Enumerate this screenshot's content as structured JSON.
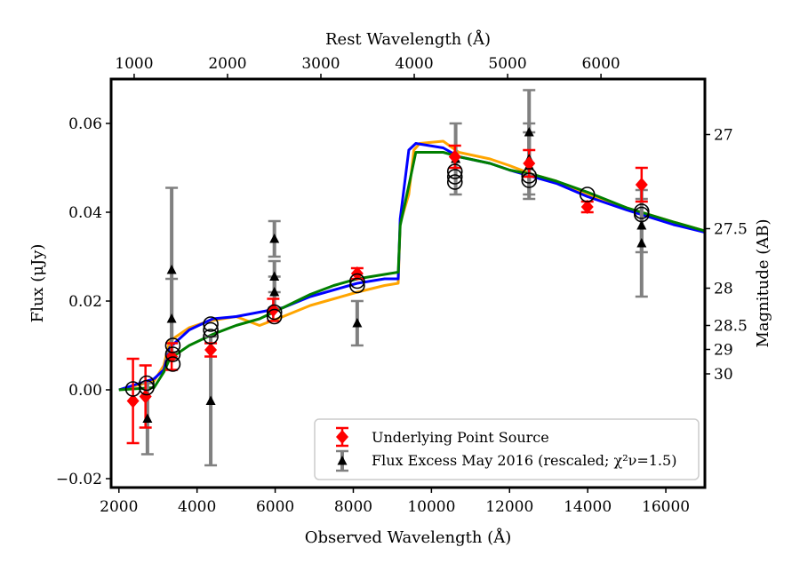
{
  "chart_data": {
    "type": "scatter",
    "xlabel": "Observed Wavelength (Å)",
    "ylabel": "Flux (μJy)",
    "top_xlabel": "Rest Wavelength (Å)",
    "right_ylabel": "Magnitude (AB)",
    "xlim": [
      1800,
      17000
    ],
    "ylim": [
      -0.022,
      0.07
    ],
    "x_ticks": [
      {
        "value": 2000,
        "label": "2000"
      },
      {
        "value": 4000,
        "label": "4000"
      },
      {
        "value": 6000,
        "label": "6000"
      },
      {
        "value": 8000,
        "label": "8000"
      },
      {
        "value": 10000,
        "label": "10000"
      },
      {
        "value": 12000,
        "label": "12000"
      },
      {
        "value": 14000,
        "label": "14000"
      },
      {
        "value": 16000,
        "label": "16000"
      }
    ],
    "y_ticks": [
      {
        "value": -0.02,
        "label": "−0.02"
      },
      {
        "value": 0.0,
        "label": "0.00"
      },
      {
        "value": 0.02,
        "label": "0.02"
      },
      {
        "value": 0.04,
        "label": "0.04"
      },
      {
        "value": 0.06,
        "label": "0.06"
      }
    ],
    "top_ticks": [
      {
        "value": 2390,
        "label": "1000"
      },
      {
        "value": 4780,
        "label": "2000"
      },
      {
        "value": 7170,
        "label": "3000"
      },
      {
        "value": 9560,
        "label": "4000"
      },
      {
        "value": 11950,
        "label": "5000"
      },
      {
        "value": 14340,
        "label": "6000"
      }
    ],
    "right_ticks": [
      {
        "flux": 0.0575,
        "label": "27"
      },
      {
        "flux": 0.0363,
        "label": "27.5"
      },
      {
        "flux": 0.0229,
        "label": "28"
      },
      {
        "flux": 0.0145,
        "label": "28.5"
      },
      {
        "flux": 0.0091,
        "label": "29"
      },
      {
        "flux": 0.0036,
        "label": "30"
      }
    ],
    "series": [
      {
        "name": "Underlying Point Source",
        "marker": "diamond",
        "color": "#ff0000",
        "points": [
          {
            "x": 2360,
            "y": -0.0025,
            "err": 0.0095
          },
          {
            "x": 2680,
            "y": -0.0015,
            "err": 0.007
          },
          {
            "x": 3350,
            "y": 0.0075,
            "err": 0.003
          },
          {
            "x": 4350,
            "y": 0.009,
            "err": 0.0015
          },
          {
            "x": 5950,
            "y": 0.018,
            "err": 0.0025
          },
          {
            "x": 8100,
            "y": 0.0262,
            "err": 0.0012
          },
          {
            "x": 10600,
            "y": 0.0525,
            "err": 0.0025
          },
          {
            "x": 12500,
            "y": 0.051,
            "err": 0.003
          },
          {
            "x": 13990,
            "y": 0.0412,
            "err": 0.0012
          },
          {
            "x": 15380,
            "y": 0.0462,
            "err": 0.0038
          }
        ]
      },
      {
        "name": "Flux Excess May 2016 (rescaled; χ²ν=1.5)",
        "marker": "triangle",
        "color": "#000000",
        "errcolor": "#808080",
        "points": [
          {
            "x": 2730,
            "y": -0.0065,
            "err": 0.008
          },
          {
            "x": 3350,
            "y": 0.027,
            "err": 0.0185
          },
          {
            "x": 3350,
            "y": 0.016,
            "err": 0.009
          },
          {
            "x": 4350,
            "y": -0.0025,
            "err": 0.0145
          },
          {
            "x": 5980,
            "y": 0.034,
            "err": 0.004
          },
          {
            "x": 5980,
            "y": 0.0255,
            "err": 0.0035
          },
          {
            "x": 5980,
            "y": 0.022,
            "err": 0.0035
          },
          {
            "x": 8100,
            "y": 0.015,
            "err": 0.005
          },
          {
            "x": 10620,
            "y": 0.052,
            "err": 0.008
          },
          {
            "x": 12500,
            "y": 0.058,
            "err": 0.0095
          },
          {
            "x": 12500,
            "y": 0.052,
            "err": 0.008
          },
          {
            "x": 12500,
            "y": 0.0505,
            "err": 0.0075
          },
          {
            "x": 15380,
            "y": 0.033,
            "err": 0.012
          },
          {
            "x": 15380,
            "y": 0.037,
            "err": 0.006
          }
        ]
      },
      {
        "name": "Model photometry",
        "marker": "circle",
        "color": "#000000",
        "points": [
          {
            "x": 2360,
            "y": 0.0002
          },
          {
            "x": 2710,
            "y": 0.0015
          },
          {
            "x": 2710,
            "y": 0.0005
          },
          {
            "x": 3380,
            "y": 0.0058
          },
          {
            "x": 3380,
            "y": 0.008
          },
          {
            "x": 3380,
            "y": 0.01
          },
          {
            "x": 4350,
            "y": 0.012
          },
          {
            "x": 4350,
            "y": 0.0135
          },
          {
            "x": 4350,
            "y": 0.0148
          },
          {
            "x": 5980,
            "y": 0.0165
          },
          {
            "x": 5980,
            "y": 0.0175
          },
          {
            "x": 8100,
            "y": 0.0235
          },
          {
            "x": 8100,
            "y": 0.0245
          },
          {
            "x": 10600,
            "y": 0.0468
          },
          {
            "x": 10600,
            "y": 0.048
          },
          {
            "x": 10600,
            "y": 0.0492
          },
          {
            "x": 12500,
            "y": 0.0472
          },
          {
            "x": 12500,
            "y": 0.0482
          },
          {
            "x": 13990,
            "y": 0.044
          },
          {
            "x": 15380,
            "y": 0.0395
          },
          {
            "x": 15380,
            "y": 0.0402
          }
        ]
      },
      {
        "name": "Model SED (orange)",
        "marker": "line",
        "color": "#ffa500",
        "points": [
          [
            2000,
            0
          ],
          [
            2900,
            0.002
          ],
          [
            3150,
            0.0055
          ],
          [
            3300,
            0.011
          ],
          [
            3800,
            0.014
          ],
          [
            4300,
            0.0155
          ],
          [
            5000,
            0.0165
          ],
          [
            5600,
            0.0145
          ],
          [
            6200,
            0.0165
          ],
          [
            6900,
            0.019
          ],
          [
            7500,
            0.0205
          ],
          [
            8100,
            0.022
          ],
          [
            8800,
            0.0235
          ],
          [
            9150,
            0.024
          ],
          [
            9200,
            0.0375
          ],
          [
            9420,
            0.044
          ],
          [
            9550,
            0.054
          ],
          [
            9700,
            0.0555
          ],
          [
            10300,
            0.056
          ],
          [
            10700,
            0.0535
          ],
          [
            11500,
            0.052
          ],
          [
            12000,
            0.0505
          ],
          [
            12600,
            0.0485
          ],
          [
            13200,
            0.047
          ],
          [
            14000,
            0.044
          ],
          [
            15000,
            0.041
          ],
          [
            16200,
            0.0378
          ],
          [
            17000,
            0.0358
          ]
        ]
      },
      {
        "name": "Model SED (blue)",
        "marker": "line",
        "color": "#0000ff",
        "points": [
          [
            2000,
            0
          ],
          [
            2900,
            0.0025
          ],
          [
            3150,
            0.0045
          ],
          [
            3300,
            0.0095
          ],
          [
            3800,
            0.0135
          ],
          [
            4400,
            0.016
          ],
          [
            5000,
            0.0165
          ],
          [
            5600,
            0.0175
          ],
          [
            6200,
            0.0185
          ],
          [
            6900,
            0.021
          ],
          [
            7500,
            0.0225
          ],
          [
            8100,
            0.024
          ],
          [
            8800,
            0.025
          ],
          [
            9150,
            0.025
          ],
          [
            9200,
            0.0385
          ],
          [
            9420,
            0.054
          ],
          [
            9600,
            0.0555
          ],
          [
            10300,
            0.0545
          ],
          [
            10700,
            0.0525
          ],
          [
            11500,
            0.051
          ],
          [
            12000,
            0.0495
          ],
          [
            12600,
            0.048
          ],
          [
            13200,
            0.0465
          ],
          [
            14000,
            0.0435
          ],
          [
            15000,
            0.0405
          ],
          [
            16200,
            0.0372
          ],
          [
            17000,
            0.0355
          ]
        ]
      },
      {
        "name": "Model SED (green)",
        "marker": "line",
        "color": "#007f00",
        "points": [
          [
            2000,
            0
          ],
          [
            2900,
            0.0005
          ],
          [
            3150,
            0.004
          ],
          [
            3300,
            0.007
          ],
          [
            3800,
            0.01
          ],
          [
            4400,
            0.0125
          ],
          [
            5000,
            0.0145
          ],
          [
            5600,
            0.016
          ],
          [
            6200,
            0.0185
          ],
          [
            6900,
            0.0215
          ],
          [
            7500,
            0.0235
          ],
          [
            8100,
            0.025
          ],
          [
            8800,
            0.026
          ],
          [
            9150,
            0.0265
          ],
          [
            9200,
            0.037
          ],
          [
            9420,
            0.046
          ],
          [
            9600,
            0.0535
          ],
          [
            10300,
            0.0535
          ],
          [
            10700,
            0.0525
          ],
          [
            11500,
            0.051
          ],
          [
            12000,
            0.0495
          ],
          [
            12600,
            0.0485
          ],
          [
            13200,
            0.047
          ],
          [
            14000,
            0.0445
          ],
          [
            15000,
            0.041
          ],
          [
            16200,
            0.0378
          ],
          [
            17000,
            0.0358
          ]
        ]
      }
    ],
    "legend": [
      {
        "label": "Underlying Point Source"
      },
      {
        "label": "Flux Excess May 2016 (rescaled; χ²ν=1.5)"
      }
    ],
    "legend_position": "lower-right"
  }
}
